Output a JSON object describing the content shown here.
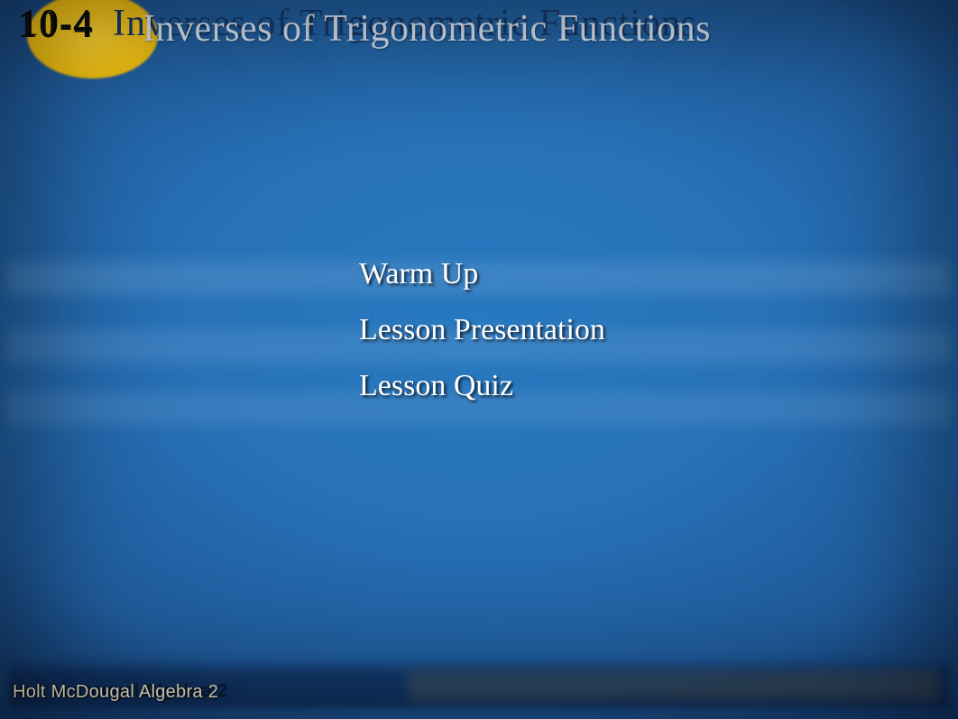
{
  "header": {
    "lesson_number_a": "10-4",
    "lesson_number_b": "10-4",
    "title_a": "Inverses of Trigonometric Functions",
    "title_b": "Inverses of Trigonometric Functions"
  },
  "menu": {
    "items": [
      {
        "label": "Warm Up"
      },
      {
        "label": "Lesson Presentation"
      },
      {
        "label": "Lesson Quiz"
      }
    ]
  },
  "footer": {
    "brand_a": "Holt McDougal Algebra 2",
    "brand_b": "Holt McDougal Algebra 2"
  },
  "style": {
    "background_gradient": [
      "#2779c0",
      "#2872b8",
      "#1f5a9a",
      "#0e2a55"
    ],
    "sun_color": "#f6c617",
    "title_front_color": "#d9e6f4",
    "title_back_color": "#183a6a",
    "menu_fontsize_pt": 26,
    "title_fontsize_pt": 32,
    "footer_fontsize_pt": 15,
    "text_shadow_color": "#000000",
    "strip_color": "#6ea0d2",
    "font_family_title": "Times New Roman",
    "font_family_footer": "Arial"
  }
}
